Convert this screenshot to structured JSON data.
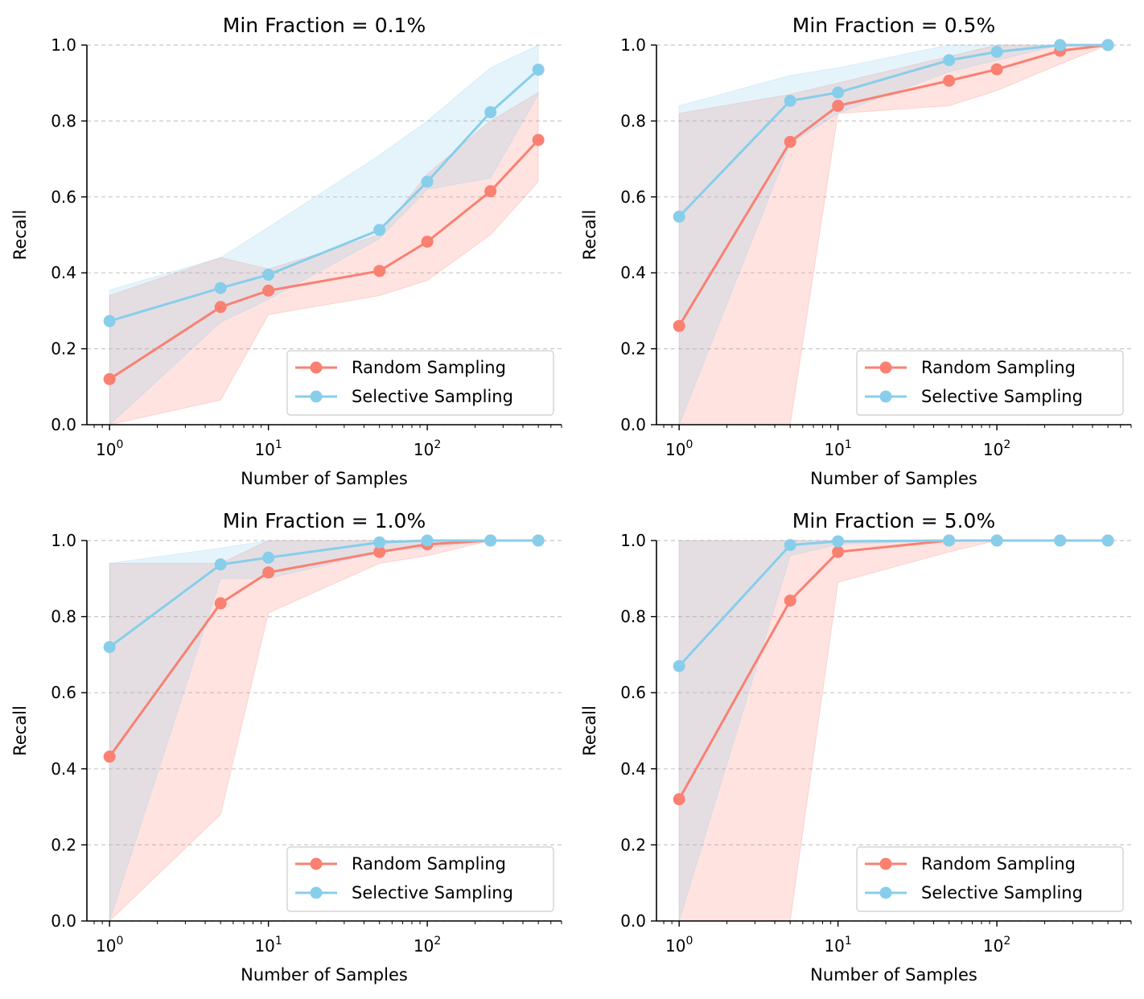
{
  "chart_data": [
    {
      "type": "line",
      "title": "Min Fraction = 0.1%",
      "xlabel": "Number of Samples",
      "ylabel": "Recall",
      "xscale": "log",
      "xlim": [
        0.72,
        700
      ],
      "ylim": [
        0.0,
        1.0
      ],
      "yticks": [
        "0.0",
        "0.2",
        "0.4",
        "0.6",
        "0.8",
        "1.0"
      ],
      "xticks": [
        {
          "base": "10",
          "exp": "0",
          "value": 1
        },
        {
          "base": "10",
          "exp": "1",
          "value": 10
        },
        {
          "base": "10",
          "exp": "2",
          "value": 100
        }
      ],
      "grid": "y-dashed",
      "legend_position": "lower-right",
      "x": [
        1,
        5,
        10,
        50,
        100,
        250,
        500
      ],
      "series": [
        {
          "name": "Random Sampling",
          "color": "#FA8072",
          "values": [
            0.12,
            0.31,
            0.353,
            0.405,
            0.482,
            0.615,
            0.75
          ],
          "band_lower": [
            0.0,
            0.065,
            0.29,
            0.34,
            0.38,
            0.5,
            0.64
          ],
          "band_upper": [
            0.34,
            0.44,
            0.41,
            0.5,
            0.66,
            0.8,
            0.875
          ]
        },
        {
          "name": "Selective Sampling",
          "color": "#87CEEB",
          "values": [
            0.273,
            0.36,
            0.395,
            0.513,
            0.64,
            0.823,
            0.935
          ],
          "band_lower": [
            0.0,
            0.27,
            0.33,
            0.49,
            0.62,
            0.65,
            0.87
          ],
          "band_upper": [
            0.355,
            0.44,
            0.52,
            0.71,
            0.8,
            0.94,
            1.0
          ]
        }
      ]
    },
    {
      "type": "line",
      "title": "Min Fraction = 0.5%",
      "xlabel": "Number of Samples",
      "ylabel": "Recall",
      "xscale": "log",
      "xlim": [
        0.72,
        700
      ],
      "ylim": [
        0.0,
        1.0
      ],
      "yticks": [
        "0.0",
        "0.2",
        "0.4",
        "0.6",
        "0.8",
        "1.0"
      ],
      "xticks": [
        {
          "base": "10",
          "exp": "0",
          "value": 1
        },
        {
          "base": "10",
          "exp": "1",
          "value": 10
        },
        {
          "base": "10",
          "exp": "2",
          "value": 100
        }
      ],
      "grid": "y-dashed",
      "legend_position": "lower-right",
      "x": [
        1,
        5,
        10,
        50,
        100,
        250,
        500
      ],
      "series": [
        {
          "name": "Random Sampling",
          "color": "#FA8072",
          "values": [
            0.26,
            0.745,
            0.84,
            0.906,
            0.936,
            0.985,
            1.0
          ],
          "band_lower": [
            0.0,
            0.0,
            0.82,
            0.84,
            0.88,
            0.95,
            1.0
          ],
          "band_upper": [
            0.82,
            0.87,
            0.9,
            0.97,
            1.0,
            1.0,
            1.0
          ]
        },
        {
          "name": "Selective Sampling",
          "color": "#87CEEB",
          "values": [
            0.548,
            0.853,
            0.875,
            0.96,
            0.982,
            1.0,
            1.0
          ],
          "band_lower": [
            0.0,
            0.74,
            0.82,
            0.93,
            0.96,
            1.0,
            1.0
          ],
          "band_upper": [
            0.84,
            0.92,
            0.94,
            1.0,
            1.0,
            1.0,
            1.0
          ]
        }
      ]
    },
    {
      "type": "line",
      "title": "Min Fraction = 1.0%",
      "xlabel": "Number of Samples",
      "ylabel": "Recall",
      "xscale": "log",
      "xlim": [
        0.72,
        700
      ],
      "ylim": [
        0.0,
        1.0
      ],
      "yticks": [
        "0.0",
        "0.2",
        "0.4",
        "0.6",
        "0.8",
        "1.0"
      ],
      "xticks": [
        {
          "base": "10",
          "exp": "0",
          "value": 1
        },
        {
          "base": "10",
          "exp": "1",
          "value": 10
        },
        {
          "base": "10",
          "exp": "2",
          "value": 100
        }
      ],
      "grid": "y-dashed",
      "legend_position": "lower-right",
      "x": [
        1,
        5,
        10,
        50,
        100,
        250,
        500
      ],
      "series": [
        {
          "name": "Random Sampling",
          "color": "#FA8072",
          "values": [
            0.432,
            0.835,
            0.916,
            0.97,
            0.99,
            1.0,
            1.0
          ],
          "band_lower": [
            0.0,
            0.28,
            0.81,
            0.94,
            0.96,
            1.0,
            1.0
          ],
          "band_upper": [
            0.94,
            0.94,
            1.0,
            1.0,
            1.0,
            1.0,
            1.0
          ]
        },
        {
          "name": "Selective Sampling",
          "color": "#87CEEB",
          "values": [
            0.72,
            0.937,
            0.955,
            0.995,
            1.0,
            1.0,
            1.0
          ],
          "band_lower": [
            0.0,
            0.9,
            0.9,
            0.97,
            0.98,
            1.0,
            1.0
          ],
          "band_upper": [
            0.94,
            0.98,
            1.0,
            1.0,
            1.0,
            1.0,
            1.0
          ]
        }
      ]
    },
    {
      "type": "line",
      "title": "Min Fraction = 5.0%",
      "xlabel": "Number of Samples",
      "ylabel": "Recall",
      "xscale": "log",
      "xlim": [
        0.72,
        700
      ],
      "ylim": [
        0.0,
        1.0
      ],
      "yticks": [
        "0.0",
        "0.2",
        "0.4",
        "0.6",
        "0.8",
        "1.0"
      ],
      "xticks": [
        {
          "base": "10",
          "exp": "0",
          "value": 1
        },
        {
          "base": "10",
          "exp": "1",
          "value": 10
        },
        {
          "base": "10",
          "exp": "2",
          "value": 100
        }
      ],
      "grid": "y-dashed",
      "legend_position": "lower-right",
      "x": [
        1,
        5,
        10,
        50,
        100,
        250,
        500
      ],
      "series": [
        {
          "name": "Random Sampling",
          "color": "#FA8072",
          "values": [
            0.32,
            0.842,
            0.97,
            1.0,
            1.0,
            1.0,
            1.0
          ],
          "band_lower": [
            0.0,
            0.0,
            0.89,
            0.97,
            1.0,
            1.0,
            1.0
          ],
          "band_upper": [
            1.0,
            1.0,
            1.0,
            1.0,
            1.0,
            1.0,
            1.0
          ]
        },
        {
          "name": "Selective Sampling",
          "color": "#87CEEB",
          "values": [
            0.67,
            0.988,
            0.998,
            1.0,
            1.0,
            1.0,
            1.0
          ],
          "band_lower": [
            0.0,
            0.96,
            0.99,
            1.0,
            1.0,
            1.0,
            1.0
          ],
          "band_upper": [
            1.0,
            1.0,
            1.0,
            1.0,
            1.0,
            1.0,
            1.0
          ]
        }
      ]
    }
  ]
}
